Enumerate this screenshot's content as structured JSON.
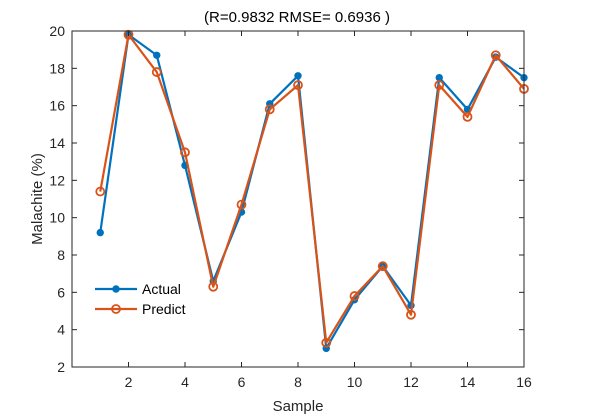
{
  "chart_data": {
    "type": "line",
    "title": "(R=0.9832 RMSE= 0.6936 )",
    "xlabel": "Sample",
    "ylabel": "Malachite (%)",
    "xlim": [
      0,
      16
    ],
    "ylim": [
      2,
      20
    ],
    "xticks": [
      2,
      4,
      6,
      8,
      10,
      12,
      14,
      16
    ],
    "yticks": [
      2,
      4,
      6,
      8,
      10,
      12,
      14,
      16,
      18,
      20
    ],
    "x": [
      1,
      2,
      3,
      4,
      5,
      6,
      7,
      8,
      9,
      10,
      11,
      12,
      13,
      14,
      15,
      16
    ],
    "series": [
      {
        "name": "Actual",
        "color": "#0072BD",
        "marker": "filled-circle",
        "values": [
          9.2,
          19.8,
          18.7,
          12.8,
          6.6,
          10.3,
          16.1,
          17.6,
          3.0,
          5.6,
          7.4,
          5.3,
          17.5,
          15.8,
          18.6,
          17.5
        ]
      },
      {
        "name": "Predict",
        "color": "#D95319",
        "marker": "open-circle",
        "values": [
          11.4,
          19.8,
          17.8,
          13.5,
          6.3,
          10.7,
          15.8,
          17.1,
          3.3,
          5.8,
          7.4,
          4.8,
          17.1,
          15.4,
          18.7,
          16.9
        ]
      }
    ],
    "grid": false,
    "legend_position": "lower-left"
  }
}
